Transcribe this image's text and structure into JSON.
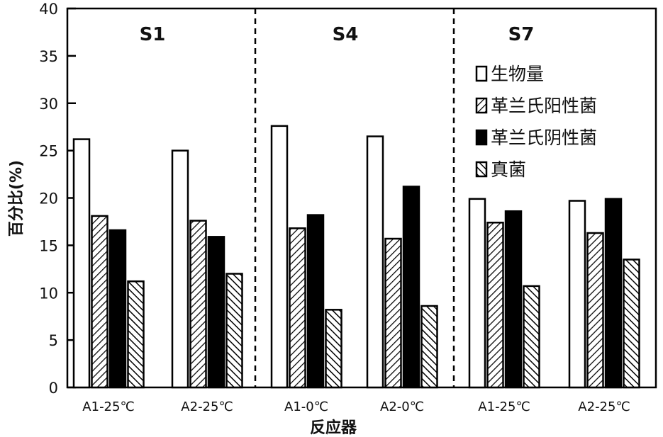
{
  "chart_data": {
    "type": "bar",
    "xlabel": "反应器",
    "ylabel": "百分比(%)",
    "ylim": [
      0,
      40
    ],
    "yticks": [
      0,
      5,
      10,
      15,
      20,
      25,
      30,
      35,
      40
    ],
    "grid": false,
    "legend_placement": "top-right",
    "panels": [
      "S1",
      "S4",
      "S7"
    ],
    "categories": [
      "A1-25℃",
      "A2-25℃",
      "A1-0℃",
      "A2-0℃",
      "A1-25℃",
      "A2-25℃"
    ],
    "series": [
      {
        "name": "生物量",
        "fill": "white",
        "values": [
          26.2,
          25.0,
          27.6,
          26.5,
          19.9,
          19.7
        ]
      },
      {
        "name": "革兰氏阳性菌",
        "fill": "hatch-forward",
        "values": [
          18.1,
          17.6,
          16.8,
          15.7,
          17.4,
          16.3
        ]
      },
      {
        "name": "革兰氏阴性菌",
        "fill": "black",
        "values": [
          16.6,
          15.9,
          18.2,
          21.2,
          18.6,
          19.9
        ]
      },
      {
        "name": "真菌",
        "fill": "hatch-backward",
        "values": [
          11.2,
          12.0,
          8.2,
          8.6,
          10.7,
          13.5
        ]
      }
    ]
  }
}
